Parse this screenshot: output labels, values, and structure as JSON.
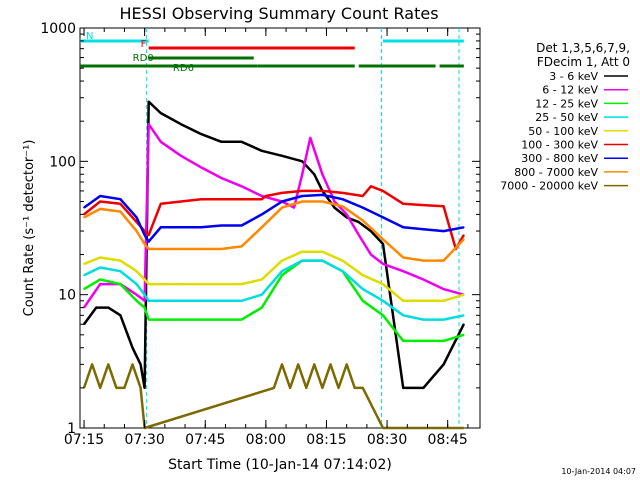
{
  "chart_data": {
    "type": "line",
    "title": "HESSI Observing Summary Count Rates",
    "xlabel": "Start Time (10-Jan-14 07:14:02)",
    "ylabel": "Count Rate (s⁻¹ detector⁻¹)",
    "x_range_minutes_since_0714": [
      0,
      99
    ],
    "x_tick_labels": [
      "07:15",
      "07:30",
      "07:45",
      "08:00",
      "08:15",
      "08:30",
      "08:45"
    ],
    "x_tick_minutes": [
      1,
      16,
      31,
      46,
      61,
      76,
      91
    ],
    "y_scale": "log",
    "ylim": [
      1,
      1000
    ],
    "y_tick_labels": [
      "1",
      "10",
      "100",
      "1000"
    ],
    "y_tick_values": [
      1,
      10,
      100,
      1000
    ],
    "grid": false,
    "legend_position": "right",
    "legend_header": [
      "Det 1,3,5,6,7,9,",
      "FDecim 1, Att 0"
    ],
    "footer_date": "10-Jan-2014 04:07",
    "vertical_markers_minutes": [
      16.5,
      74.6,
      93.8
    ],
    "flag_bars": [
      {
        "label": "N",
        "color": "#00e0e0",
        "segments": [
          [
            0,
            17
          ],
          [
            75,
            95
          ]
        ]
      },
      {
        "label": "F",
        "color": "#ee0000",
        "segments": [
          [
            17,
            68
          ]
        ]
      },
      {
        "label": "RD0",
        "color": "#007000",
        "segments": [
          [
            17,
            43
          ]
        ]
      },
      {
        "label": "RD6",
        "color": "#007000",
        "segments": [
          [
            0,
            44
          ],
          [
            44,
            68
          ],
          [
            69,
            88
          ],
          [
            89,
            95
          ]
        ]
      }
    ],
    "series": [
      {
        "name": "3 - 6 keV",
        "color": "#000000",
        "x": [
          1,
          4,
          7,
          10,
          13,
          15,
          16,
          17,
          20,
          25,
          30,
          35,
          40,
          45,
          50,
          55,
          58,
          60,
          63,
          66,
          69,
          72,
          75,
          80,
          85,
          90,
          95
        ],
        "y": [
          6,
          8,
          8,
          7,
          4,
          3,
          2,
          280,
          230,
          190,
          160,
          140,
          140,
          120,
          110,
          100,
          80,
          60,
          45,
          38,
          35,
          30,
          24,
          2,
          2,
          3,
          6
        ]
      },
      {
        "name": "6 - 12 keV",
        "color": "#ee00ee",
        "x": [
          1,
          5,
          10,
          14,
          16,
          17,
          20,
          25,
          30,
          35,
          40,
          45,
          50,
          53,
          55,
          57,
          60,
          63,
          66,
          69,
          72,
          75,
          80,
          85,
          90,
          95
        ],
        "y": [
          8,
          12,
          12,
          10,
          9,
          190,
          140,
          110,
          90,
          75,
          65,
          55,
          50,
          45,
          80,
          150,
          80,
          50,
          40,
          28,
          20,
          17,
          15,
          13,
          11,
          10
        ]
      },
      {
        "name": "12 - 25 keV",
        "color": "#00ee00",
        "x": [
          1,
          5,
          10,
          14,
          16,
          17,
          20,
          25,
          30,
          35,
          40,
          45,
          50,
          55,
          60,
          65,
          70,
          75,
          80,
          85,
          90,
          95
        ],
        "y": [
          11,
          13,
          12,
          9,
          8,
          6.5,
          6.5,
          6.5,
          6.5,
          6.5,
          6.5,
          8,
          14,
          18,
          18,
          15,
          9,
          7,
          4.5,
          4.5,
          4.5,
          5
        ]
      },
      {
        "name": "25 - 50 keV",
        "color": "#00dddd",
        "x": [
          1,
          5,
          10,
          14,
          16,
          17,
          20,
          25,
          30,
          35,
          40,
          45,
          50,
          55,
          60,
          65,
          70,
          75,
          80,
          85,
          90,
          95
        ],
        "y": [
          14,
          16,
          15,
          12,
          10,
          9,
          9,
          9,
          9,
          9,
          9,
          10,
          15,
          18,
          18,
          15,
          11,
          9,
          7,
          6.5,
          6.5,
          7
        ]
      },
      {
        "name": "50 - 100 keV",
        "color": "#dddd00",
        "x": [
          1,
          5,
          10,
          14,
          16,
          17,
          20,
          25,
          30,
          35,
          40,
          45,
          50,
          55,
          60,
          65,
          70,
          75,
          80,
          85,
          90,
          95
        ],
        "y": [
          17,
          19,
          18,
          15,
          13,
          12,
          12,
          12,
          12,
          12,
          12,
          13,
          18,
          21,
          21,
          18,
          14,
          12,
          9,
          9,
          9,
          10
        ]
      },
      {
        "name": "100 - 300 keV",
        "color": "#ee0000",
        "x": [
          1,
          5,
          10,
          14,
          16,
          17,
          20,
          25,
          30,
          35,
          40,
          45,
          46,
          50,
          55,
          60,
          65,
          70,
          72,
          75,
          80,
          85,
          90,
          93,
          95
        ],
        "y": [
          40,
          50,
          48,
          35,
          30,
          28,
          48,
          50,
          52,
          52,
          52,
          52,
          55,
          58,
          60,
          60,
          58,
          55,
          65,
          60,
          48,
          47,
          46,
          22,
          28
        ]
      },
      {
        "name": "300 - 800 keV",
        "color": "#0000ee",
        "x": [
          1,
          5,
          10,
          14,
          16,
          17,
          20,
          25,
          30,
          35,
          40,
          45,
          50,
          55,
          60,
          65,
          70,
          75,
          80,
          85,
          90,
          95
        ],
        "y": [
          45,
          55,
          52,
          38,
          28,
          25,
          32,
          32,
          32,
          33,
          33,
          40,
          50,
          55,
          56,
          52,
          45,
          38,
          32,
          31,
          30,
          32
        ]
      },
      {
        "name": "800 - 7000 keV",
        "color": "#ff8800",
        "x": [
          1,
          5,
          10,
          14,
          16,
          17,
          20,
          25,
          30,
          35,
          40,
          45,
          50,
          55,
          60,
          65,
          70,
          75,
          80,
          85,
          90,
          95
        ],
        "y": [
          38,
          44,
          42,
          30,
          24,
          22,
          22,
          22,
          22,
          22,
          23,
          32,
          45,
          50,
          50,
          46,
          36,
          26,
          19,
          18,
          18,
          26
        ]
      },
      {
        "name": "7000 - 20000 keV",
        "color": "#7a6a00",
        "x": [
          1,
          3,
          5,
          7,
          9,
          11,
          13,
          15,
          16,
          48,
          50,
          52,
          54,
          56,
          58,
          60,
          62,
          64,
          66,
          68,
          70,
          75,
          95
        ],
        "y": [
          2,
          3,
          2,
          3,
          2,
          2,
          3,
          2,
          1,
          2,
          3,
          2,
          3,
          2,
          3,
          2,
          3,
          2,
          3,
          2,
          2,
          1,
          1
        ]
      }
    ]
  }
}
